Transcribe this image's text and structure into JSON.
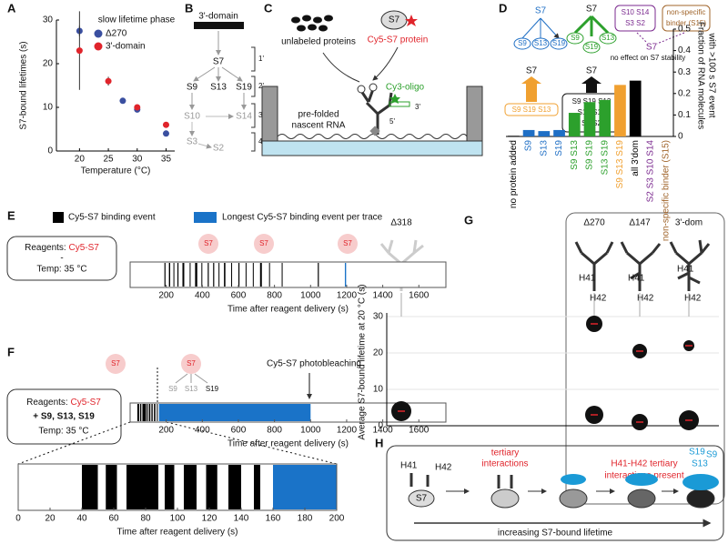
{
  "panel_labels": [
    "A",
    "B",
    "C",
    "D",
    "E",
    "F",
    "G",
    "H"
  ],
  "chart_data": [
    {
      "type": "scatter",
      "xlabel": "Temperature (°C)",
      "ylabel": "S7-bound lifetimes (s)",
      "legend_title": "slow lifetime phase",
      "xlim": [
        16,
        36.5
      ],
      "ylim": [
        0,
        30
      ],
      "xticks": [
        20,
        25,
        30,
        35
      ],
      "yticks": [
        0,
        10,
        20,
        30
      ],
      "series": [
        {
          "name": "Δ270",
          "color": "#3a4fa0",
          "x": [
            20,
            27.5,
            30,
            35
          ],
          "values": [
            27.5,
            11.5,
            9.5,
            4
          ],
          "errors": [
            1.2,
            0.4,
            0.3,
            0.4
          ]
        },
        {
          "name": "3'-domain",
          "color": "#e0242b",
          "x": [
            20,
            25,
            30,
            35
          ],
          "values": [
            23,
            16,
            10,
            6
          ],
          "errors": [
            9,
            1,
            0.5,
            0.6
          ]
        }
      ]
    },
    {
      "type": "bar",
      "ylabel": [
        "Fraction of RNA molecules",
        "with >100 s S7 event"
      ],
      "categories": [
        "no protein added",
        "S9",
        "S13",
        "S19",
        "S9 S13",
        "S9 S19",
        "S13 S19",
        "S9 S13 S19",
        "all 3'dom",
        "S2 S3 S10 S14",
        "non-specific binder (S15)"
      ],
      "values": [
        0.003,
        0.03,
        0.025,
        0.03,
        0.11,
        0.16,
        0.17,
        0.24,
        0.26,
        0,
        0
      ],
      "colors": [
        "#000000",
        "#1f6fc5",
        "#1f6fc5",
        "#1f6fc5",
        "#2ca02c",
        "#2ca02c",
        "#2ca02c",
        "#f0a030",
        "#000000",
        "#7b2a8f",
        "#a0642a"
      ],
      "ylim": [
        0,
        0.5
      ],
      "yticks": [
        0,
        0.1,
        0.2,
        0.3,
        0.4,
        0.5
      ]
    },
    {
      "type": "event-trace",
      "xlabel": "Time after reagent delivery (s)",
      "xlim": [
        0,
        1750
      ],
      "xticks": [
        200,
        400,
        600,
        800,
        1000,
        1200,
        1400,
        1600
      ],
      "series": [
        {
          "name": "Cy5-S7 binding event",
          "color": "#000000",
          "events": [
            [
              190,
              196
            ],
            [
              215,
              222
            ],
            [
              240,
              244
            ],
            [
              262,
              268
            ],
            [
              290,
              300
            ],
            [
              330,
              334
            ],
            [
              360,
              372
            ],
            [
              395,
              398
            ],
            [
              430,
              436
            ],
            [
              460,
              466
            ],
            [
              490,
              493
            ],
            [
              520,
              528
            ],
            [
              560,
              563
            ],
            [
              600,
              606
            ],
            [
              640,
              645
            ],
            [
              680,
              684
            ],
            [
              720,
              730
            ],
            [
              770,
              773
            ],
            [
              840,
              844
            ],
            [
              1040,
              1046
            ]
          ]
        },
        {
          "name": "Longest Cy5-S7 binding event per trace",
          "color": "#1a73c8",
          "events": [
            [
              1190,
              1197
            ]
          ]
        }
      ]
    },
    {
      "type": "event-trace",
      "xlabel": "Time after reagent delivery (s)",
      "xlim": [
        0,
        1750
      ],
      "xticks": [
        200,
        400,
        600,
        800,
        1000,
        1200,
        1400,
        1600
      ],
      "series": [
        {
          "color": "#000000",
          "events": [
            [
              40,
              50
            ],
            [
              55,
              62
            ],
            [
              68,
              88
            ],
            [
              92,
              98
            ],
            [
              104,
              112
            ],
            [
              118,
              125
            ],
            [
              132,
              140
            ],
            [
              148,
              152
            ]
          ]
        },
        {
          "color": "#1a73c8",
          "events": [
            [
              160,
              1000
            ]
          ]
        }
      ]
    },
    {
      "type": "event-trace",
      "xlabel": "Time after reagent delivery (s)",
      "xlim": [
        0,
        200
      ],
      "xticks": [
        0,
        20,
        40,
        60,
        80,
        100,
        120,
        140,
        160,
        180,
        200
      ],
      "series": [
        {
          "color": "#000000",
          "events": [
            [
              40,
              50
            ],
            [
              55,
              62
            ],
            [
              68,
              88
            ],
            [
              92,
              98
            ],
            [
              104,
              112
            ],
            [
              118,
              125
            ],
            [
              132,
              140
            ],
            [
              148,
              152
            ]
          ]
        },
        {
          "color": "#1a73c8",
          "events": [
            [
              160,
              1000
            ]
          ]
        }
      ]
    },
    {
      "type": "bubble",
      "ylabel": "Average S7-bound lifetime at 20 °C (s)",
      "categories": [
        "Δ318",
        "Δ270",
        "Δ147",
        "3'-dom"
      ],
      "ylim": [
        0,
        30
      ],
      "yticks": [
        0,
        10,
        20,
        30
      ],
      "series": [
        {
          "color": "#111111",
          "values": [
            4,
            3,
            1,
            1.5
          ],
          "sizes": [
            11,
            10,
            9,
            11
          ]
        },
        {
          "color": "#111111",
          "values": [
            null,
            28,
            20.5,
            22
          ],
          "sizes": [
            null,
            9,
            8,
            6
          ],
          "errors": [
            null,
            1.5,
            1.5,
            1.5
          ]
        }
      ]
    }
  ],
  "panel_b": {
    "top": "3'-domain",
    "nodes": [
      "S7",
      "S9",
      "S13",
      "S19",
      "S10",
      "S14",
      "S3",
      "S2"
    ],
    "steps": [
      "1'",
      "2'",
      "3'",
      "4'"
    ]
  },
  "panel_c": {
    "proteins": "unlabeled proteins",
    "s7": "S7",
    "cy5": "Cy5-S7 protein",
    "oligo": "Cy3-oligo",
    "three": "3'",
    "five": "5'",
    "rna": [
      "pre-folded",
      "nascent RNA"
    ]
  },
  "panel_d": {
    "s7": "S7",
    "blue_targets": [
      "S9",
      "S13",
      "S19"
    ],
    "green_targets": [
      "S9",
      "S19",
      "S13"
    ],
    "purple_box": [
      "S10 S14",
      "S3  S2"
    ],
    "brown_box": [
      "non-specific",
      "binder (S15)"
    ],
    "no_effect": "no effect on S7 stability",
    "orange_box": "S9 S19 S13",
    "black_box": [
      "S9 S19 S13",
      "S10 S14",
      "S3 S2"
    ]
  },
  "panel_e": {
    "reagents": "Reagents:",
    "reagent": "Cy5-S7",
    "dash": "-",
    "temp": "Temp: 35 °C",
    "s7": "S7"
  },
  "panel_f": {
    "reagents": "Reagents:",
    "reagent": "Cy5-S7",
    "added": "+ S9, S13, S19",
    "temp": "Temp: 35 °C",
    "s7": "S7",
    "targets": [
      "S9",
      "S13",
      "S19"
    ],
    "photobleaching": "Cy5-S7 photobleaching"
  },
  "panel_g": {
    "helices": [
      "H41",
      "H42"
    ],
    "note": [
      "H41-H42 tertiary",
      "interactions present"
    ]
  },
  "panel_h": {
    "helices": [
      "H41",
      "H42"
    ],
    "s7": "S7",
    "tertiary": [
      "tertiary",
      "interactions"
    ],
    "proteins": [
      "S19",
      "S9",
      "S13"
    ],
    "arrow": "increasing S7-bound lifetime"
  }
}
